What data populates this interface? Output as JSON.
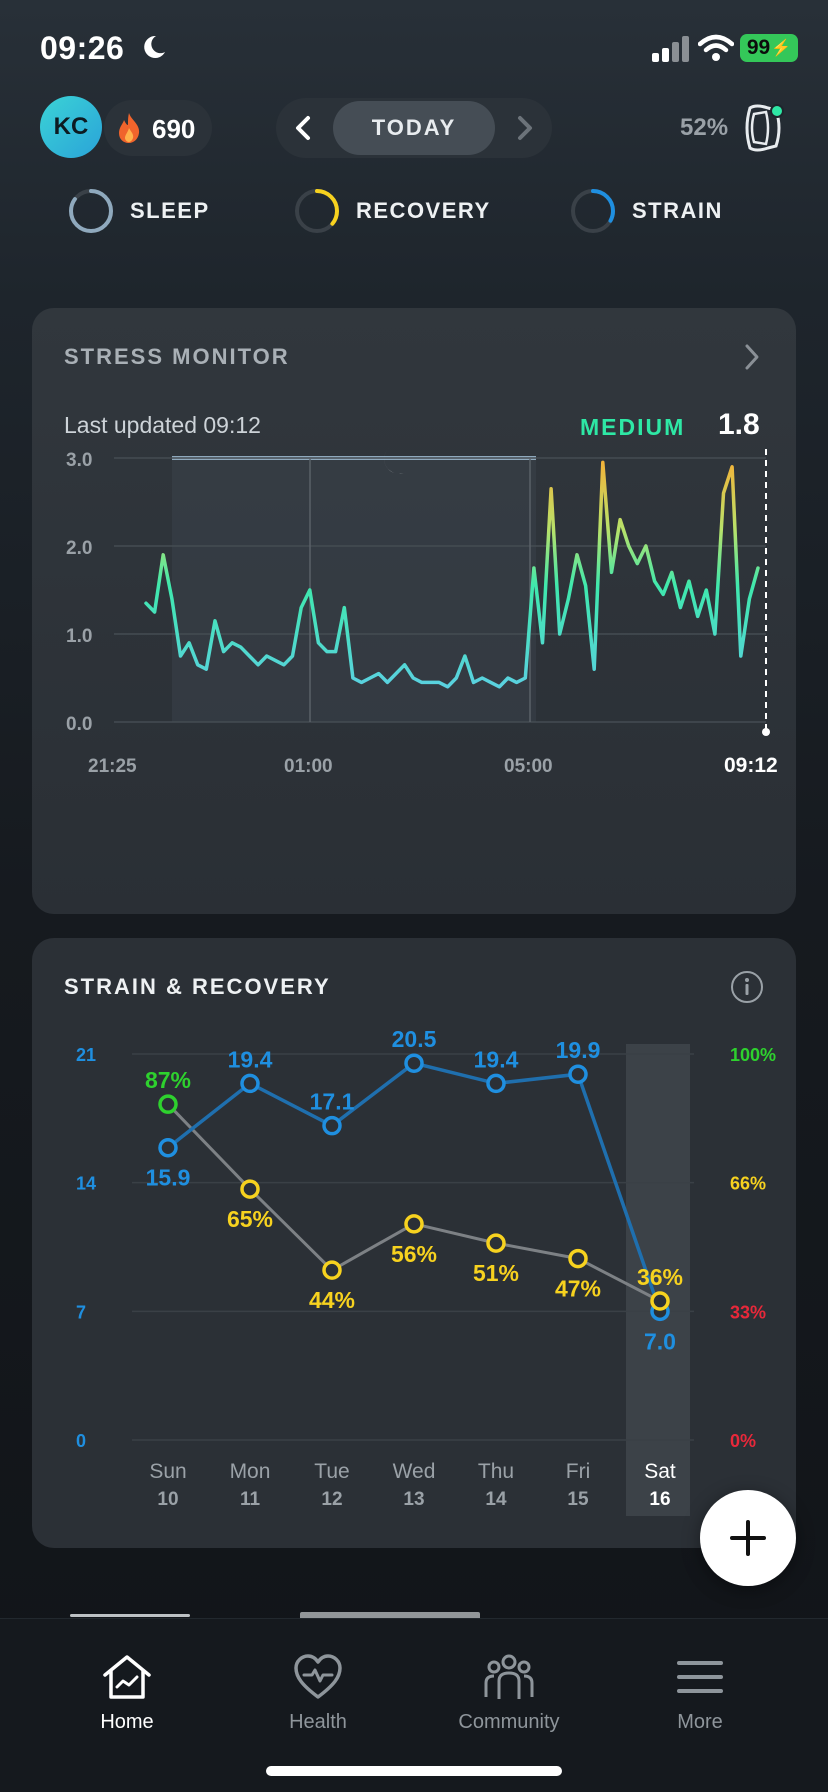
{
  "status_bar": {
    "time": "09:26",
    "battery": "99"
  },
  "header": {
    "avatar_initials": "KC",
    "streak_count": "690",
    "date_label": "TODAY",
    "strap_battery": "52%"
  },
  "rings": [
    {
      "label": "SLEEP",
      "color": "#8fa9bd",
      "progress": 0.85
    },
    {
      "label": "RECOVERY",
      "color": "#f7d21f",
      "progress": 0.36
    },
    {
      "label": "STRAIN",
      "color": "#1f8fe0",
      "progress": 0.33
    }
  ],
  "stress_monitor": {
    "title": "STRESS MONITOR",
    "last_updated": "Last updated 09:12",
    "level": "MEDIUM",
    "value": "1.8",
    "chart_data": {
      "type": "line",
      "y_ticks": [
        "3.0",
        "2.0",
        "1.0",
        "0.0"
      ],
      "x_ticks": [
        "21:25",
        "01:00",
        "05:00",
        "09:12"
      ],
      "ylim": [
        0,
        3
      ],
      "x": [
        "21:25",
        "21:35",
        "21:45",
        "21:55",
        "22:05",
        "22:15",
        "22:25",
        "22:35",
        "22:45",
        "22:55",
        "23:05",
        "23:15",
        "23:25",
        "23:35",
        "23:45",
        "23:55",
        "00:05",
        "00:15",
        "00:25",
        "00:35",
        "00:45",
        "00:55",
        "01:05",
        "01:15",
        "01:25",
        "01:35",
        "01:45",
        "01:55",
        "02:05",
        "02:15",
        "02:25",
        "02:35",
        "02:45",
        "02:55",
        "03:05",
        "03:15",
        "03:25",
        "03:35",
        "03:45",
        "03:55",
        "04:05",
        "04:15",
        "04:25",
        "04:35",
        "04:45",
        "04:55",
        "05:05",
        "05:15",
        "05:25",
        "05:35",
        "05:45",
        "05:55",
        "06:05",
        "06:15",
        "06:25",
        "06:35",
        "06:45",
        "06:55",
        "07:05",
        "07:15",
        "07:25",
        "07:35",
        "07:45",
        "07:55",
        "08:05",
        "08:15",
        "08:25",
        "08:35",
        "08:45",
        "08:55",
        "09:05",
        "09:12"
      ],
      "values": [
        1.35,
        1.25,
        1.9,
        1.4,
        0.75,
        0.9,
        0.65,
        0.6,
        1.15,
        0.8,
        0.9,
        0.85,
        0.75,
        0.65,
        0.75,
        0.7,
        0.65,
        0.75,
        1.3,
        1.5,
        0.9,
        0.8,
        0.8,
        1.3,
        0.5,
        0.45,
        0.5,
        0.55,
        0.45,
        0.55,
        0.65,
        0.5,
        0.45,
        0.45,
        0.45,
        0.4,
        0.5,
        0.75,
        0.45,
        0.5,
        0.45,
        0.4,
        0.5,
        0.45,
        0.5,
        1.75,
        0.9,
        2.65,
        1.0,
        1.4,
        1.9,
        1.55,
        0.6,
        2.95,
        1.7,
        2.3,
        2.0,
        1.8,
        2.0,
        1.6,
        1.45,
        1.7,
        1.3,
        1.6,
        1.2,
        1.5,
        1.0,
        2.6,
        2.9,
        0.75,
        1.4,
        1.75
      ]
    }
  },
  "strain_recovery": {
    "title": "STRAIN & RECOVERY",
    "chart_data": {
      "type": "line",
      "categories": [
        "Sun",
        "Mon",
        "Tue",
        "Wed",
        "Thu",
        "Fri",
        "Sat"
      ],
      "dates": [
        "10",
        "11",
        "12",
        "13",
        "14",
        "15",
        "16"
      ],
      "left_axis_ticks": [
        "21",
        "14",
        "7",
        "0"
      ],
      "right_axis_ticks": [
        "100%",
        "66%",
        "33%",
        "0%"
      ],
      "series": [
        {
          "axis": "left",
          "ylim": [
            0,
            21
          ],
          "color": "#1f8fe0",
          "values": [
            15.9,
            19.4,
            17.1,
            20.5,
            19.4,
            19.9,
            7.0
          ],
          "labels": [
            "15.9",
            "19.4",
            "17.1",
            "20.5",
            "19.4",
            "19.9",
            "7.0"
          ]
        },
        {
          "axis": "right",
          "ylim": [
            0,
            100
          ],
          "color": "#f7d21f",
          "values": [
            87,
            65,
            44,
            56,
            51,
            47,
            36
          ],
          "labels": [
            "87%",
            "65%",
            "44%",
            "56%",
            "51%",
            "47%",
            "36%"
          ],
          "point_colors": [
            "#2ed12e",
            "#f7d21f",
            "#f7d21f",
            "#f7d21f",
            "#f7d21f",
            "#f7d21f",
            "#f7d21f"
          ]
        }
      ],
      "highlighted_index": 6
    }
  },
  "tabs": [
    {
      "label": "Home",
      "icon": "home-icon",
      "active": true
    },
    {
      "label": "Health",
      "icon": "heart-icon",
      "active": false
    },
    {
      "label": "Community",
      "icon": "community-icon",
      "active": false
    },
    {
      "label": "More",
      "icon": "menu-icon",
      "active": false
    }
  ]
}
